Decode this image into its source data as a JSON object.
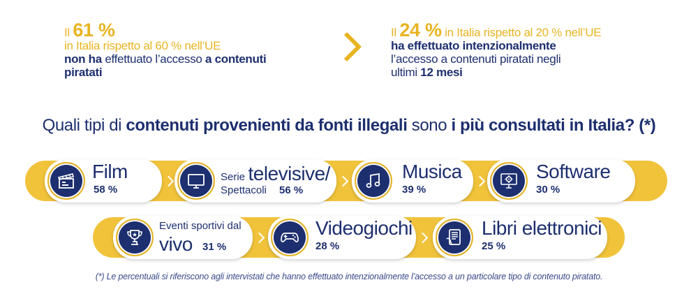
{
  "stat_left": {
    "prefix": "Il",
    "big": "61 %",
    "line2": "in Italia rispetto al 60 % nell’UE",
    "bold_a": "non ha",
    "mid": " effettuato l’accesso ",
    "bold_b": "a contenuti",
    "line4": "piratati"
  },
  "stat_right": {
    "prefix": "Il",
    "big": "24 %",
    "suffix": " in Italia rispetto al 20 % nell’UE",
    "line2": "ha effettuato intenzionalmente",
    "line3": "l’accesso a contenuti piratati negli",
    "line4_a": "ultimi ",
    "line4_b": "12 mesi"
  },
  "question": {
    "a": "Quali tipi di ",
    "b": "contenuti provenienti da fonti illegali",
    "c": " sono ",
    "d": "i più consultati in Italia? (*)"
  },
  "categories": {
    "film": {
      "name": "Film",
      "pct": "58 %",
      "icon": "clapperboard-icon"
    },
    "serie": {
      "prefix": "Serie",
      "name": "televisive/",
      "sub": "Spettacoli",
      "pct": "56 %",
      "icon": "tv-icon"
    },
    "musica": {
      "name": "Musica",
      "pct": "39 %",
      "icon": "music-note-icon"
    },
    "software": {
      "name": "Software",
      "pct": "30 %",
      "icon": "gear-monitor-icon"
    },
    "eventi": {
      "line1": "Eventi sportivi dal",
      "name": "vivo",
      "pct": "31 %",
      "icon": "trophy-icon"
    },
    "videogiochi": {
      "name": "Videogiochi",
      "pct": "28 %",
      "icon": "gamepad-icon"
    },
    "libri": {
      "name": "Libri elettronici",
      "pct": "25 %",
      "icon": "ebook-icon"
    }
  },
  "footnote": "(*) Le percentuali si riferiscono agli intervistati che hanno effettuato intenzionalmente l’accesso a un particolare tipo di contenuto piratato.",
  "colors": {
    "navy": "#1d2f6f",
    "yellow": "#e8b422",
    "band": "#f1c33b"
  }
}
